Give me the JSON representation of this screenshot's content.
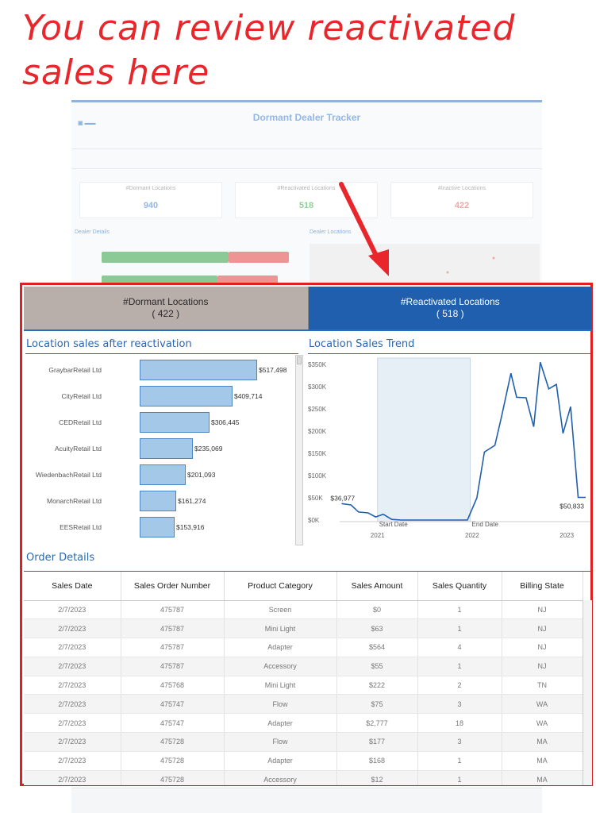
{
  "headline": {
    "line1": "You can review reactivated",
    "line2": "sales here"
  },
  "background_dashboard": {
    "title": "Dormant Dealer Tracker",
    "kpis": [
      {
        "label": "#Dormant Locations",
        "value": "940"
      },
      {
        "label": "#Reactivated Locations",
        "value": "518"
      },
      {
        "label": "#Inactive Locations",
        "value": "422"
      }
    ],
    "sections": [
      "Dealer Details",
      "Dealer Locations"
    ]
  },
  "tabs": {
    "dormant": {
      "label": "#Dormant Locations",
      "count": "( 422 )"
    },
    "reactivated": {
      "label": "#Reactivated Locations",
      "count": "( 518 )"
    }
  },
  "sections": {
    "bar_title": "Location sales after reactivation",
    "trend_title": "Location Sales Trend",
    "orders_title": "Order Details"
  },
  "chart_data": [
    {
      "type": "bar",
      "orientation": "horizontal",
      "title": "Location sales after reactivation",
      "categories": [
        "GraybarRetail Ltd",
        "CityRetail Ltd",
        "CEDRetail Ltd",
        "AcuityRetail Ltd",
        "WiedenbachRetail Ltd",
        "MonarchRetail Ltd",
        "EESRetail Ltd"
      ],
      "values": [
        517498,
        409714,
        306445,
        235069,
        201093,
        161274,
        153916
      ],
      "value_labels": [
        "$517,498",
        "$409,714",
        "$306,445",
        "$235,069",
        "$201,093",
        "$161,274",
        "$153,916"
      ],
      "xlim": [
        0,
        517498
      ]
    },
    {
      "type": "line",
      "title": "Location Sales Trend",
      "y_ticks": [
        "$350K",
        "$300K",
        "$250K",
        "$200K",
        "$150K",
        "$100K",
        "$50K",
        "$0K"
      ],
      "x_ticks": [
        "2021",
        "2022",
        "2023"
      ],
      "ylim": [
        0,
        350000
      ],
      "xlim": [
        2020.6,
        2023.25
      ],
      "series": [
        {
          "x": [
            2020.62,
            2020.72,
            2020.8,
            2020.9,
            2020.98,
            2021.06,
            2021.15,
            2021.25,
            2021.6,
            2021.9,
            2021.95,
            2022.05,
            2022.13,
            2022.24,
            2022.31,
            2022.41,
            2022.47,
            2022.57,
            2022.65,
            2022.72,
            2022.81,
            2022.89,
            2022.96,
            2023.04,
            2023.12,
            2023.2
          ],
          "y": [
            36977,
            34000,
            18000,
            16000,
            7000,
            13000,
            1500,
            0,
            0,
            0,
            0,
            50000,
            153000,
            168000,
            232000,
            330000,
            276000,
            275000,
            210000,
            355000,
            295000,
            305000,
            195000,
            255000,
            50833,
            50833
          ]
        }
      ],
      "annotations": [
        {
          "text": "$36,977",
          "x": 2020.62,
          "y": 36977
        },
        {
          "text": "$50,833",
          "x": 2023.2,
          "y": 50833
        },
        {
          "text": "Start Date",
          "x": 2021.0,
          "y": 0
        },
        {
          "text": "End Date",
          "x": 2021.98,
          "y": 0
        }
      ],
      "highlight_range": [
        "Start Date",
        "End Date"
      ]
    }
  ],
  "table": {
    "columns": [
      "Sales Date",
      "Sales Order Number",
      "Product Category",
      "Sales Amount",
      "Sales Quantity",
      "Billing State"
    ],
    "rows": [
      [
        "2/7/2023",
        "475787",
        "Screen",
        "$0",
        "1",
        "NJ"
      ],
      [
        "2/7/2023",
        "475787",
        "Mini Light",
        "$63",
        "1",
        "NJ"
      ],
      [
        "2/7/2023",
        "475787",
        "Adapter",
        "$564",
        "4",
        "NJ"
      ],
      [
        "2/7/2023",
        "475787",
        "Accessory",
        "$55",
        "1",
        "NJ"
      ],
      [
        "2/7/2023",
        "475768",
        "Mini Light",
        "$222",
        "2",
        "TN"
      ],
      [
        "2/7/2023",
        "475747",
        "Flow",
        "$75",
        "3",
        "WA"
      ],
      [
        "2/7/2023",
        "475747",
        "Adapter",
        "$2,777",
        "18",
        "WA"
      ],
      [
        "2/7/2023",
        "475728",
        "Flow",
        "$177",
        "3",
        "MA"
      ],
      [
        "2/7/2023",
        "475728",
        "Adapter",
        "$168",
        "1",
        "MA"
      ],
      [
        "2/7/2023",
        "475728",
        "Accessory",
        "$12",
        "1",
        "MA"
      ]
    ]
  },
  "colors": {
    "headline": "#e8262b",
    "highlight_border": "#e02020",
    "active_tab": "#1f5fae",
    "inactive_tab": "#b8aeaa",
    "bar_fill": "#a4c9e8",
    "line": "#1f5fae"
  }
}
